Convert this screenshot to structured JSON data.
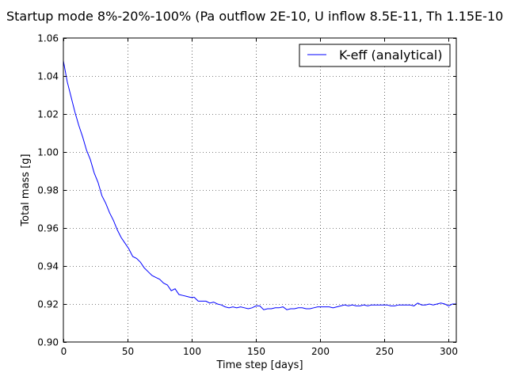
{
  "chart_data": {
    "type": "line",
    "title": "Startup mode 8%-20%-100% (Pa outflow 2E-10, U inflow 8.5E-11, Th 1.15E-10",
    "xlabel": "Time step [days]",
    "ylabel": "Total mass [g]",
    "xlim": [
      0,
      306
    ],
    "ylim": [
      0.9,
      1.06
    ],
    "xticks": [
      0,
      50,
      100,
      150,
      200,
      250,
      300
    ],
    "yticks": [
      0.9,
      0.92,
      0.94,
      0.96,
      0.98,
      1.0,
      1.02,
      1.04,
      1.06
    ],
    "xtick_labels": [
      "0",
      "50",
      "100",
      "150",
      "200",
      "250",
      "300"
    ],
    "ytick_labels": [
      "0.90",
      "0.92",
      "0.94",
      "0.96",
      "0.98",
      "1.00",
      "1.02",
      "1.04",
      "1.06"
    ],
    "grid": true,
    "legend_position": "top-right",
    "series": [
      {
        "name": "K-eff (analytical)",
        "color": "#0000ff",
        "x": [
          0,
          3,
          6,
          9,
          12,
          15,
          18,
          21,
          24,
          27,
          30,
          33,
          36,
          39,
          42,
          45,
          48,
          51,
          54,
          57,
          60,
          63,
          66,
          69,
          72,
          75,
          78,
          81,
          84,
          87,
          90,
          93,
          96,
          99,
          102,
          105,
          108,
          111,
          114,
          117,
          120,
          123,
          126,
          129,
          132,
          135,
          138,
          141,
          144,
          147,
          150,
          153,
          156,
          159,
          162,
          165,
          168,
          171,
          174,
          177,
          180,
          183,
          186,
          189,
          192,
          195,
          198,
          201,
          204,
          207,
          210,
          213,
          216,
          219,
          222,
          225,
          228,
          231,
          234,
          237,
          240,
          243,
          246,
          249,
          252,
          255,
          258,
          261,
          264,
          267,
          270,
          273,
          276,
          279,
          282,
          285,
          288,
          291,
          294,
          297,
          300,
          303,
          306
        ],
        "values": [
          1.048,
          1.037,
          1.029,
          1.021,
          1.014,
          1.008,
          1.001,
          0.996,
          0.989,
          0.984,
          0.977,
          0.973,
          0.968,
          0.964,
          0.959,
          0.955,
          0.952,
          0.949,
          0.945,
          0.944,
          0.942,
          0.939,
          0.937,
          0.935,
          0.934,
          0.933,
          0.931,
          0.93,
          0.927,
          0.928,
          0.925,
          0.9245,
          0.924,
          0.9235,
          0.9235,
          0.9215,
          0.9215,
          0.9215,
          0.9205,
          0.921,
          0.92,
          0.9195,
          0.9185,
          0.918,
          0.9185,
          0.918,
          0.9185,
          0.918,
          0.9175,
          0.918,
          0.919,
          0.919,
          0.917,
          0.9175,
          0.9175,
          0.918,
          0.918,
          0.9185,
          0.917,
          0.9175,
          0.9175,
          0.918,
          0.918,
          0.9175,
          0.9175,
          0.918,
          0.9185,
          0.9185,
          0.9185,
          0.9185,
          0.918,
          0.9185,
          0.919,
          0.9195,
          0.919,
          0.9195,
          0.919,
          0.919,
          0.9195,
          0.919,
          0.9195,
          0.9195,
          0.9195,
          0.9195,
          0.9195,
          0.919,
          0.919,
          0.9195,
          0.9195,
          0.9195,
          0.9195,
          0.919,
          0.9205,
          0.9195,
          0.9195,
          0.92,
          0.9195,
          0.92,
          0.9205,
          0.92,
          0.919,
          0.92,
          0.92
        ]
      }
    ]
  }
}
